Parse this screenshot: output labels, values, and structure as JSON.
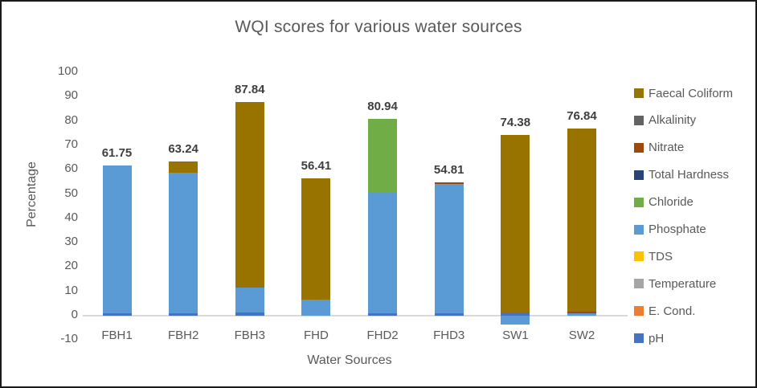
{
  "chart_data": {
    "type": "bar",
    "stacked": true,
    "title": "WQI scores for various water sources",
    "xlabel": "Water Sources",
    "ylabel": "Percentage",
    "ylim": [
      -10,
      100
    ],
    "ytick_step": 10,
    "grid": false,
    "legend_position": "right",
    "legend_order": "reverse-of-stack (Faecal Coliform on top, pH at bottom)",
    "categories": [
      "FBH1",
      "FBH2",
      "FBH3",
      "FHD",
      "FHD2",
      "FHD3",
      "SW1",
      "SW2"
    ],
    "totals": [
      61.75,
      63.24,
      87.84,
      56.41,
      80.94,
      54.81,
      74.38,
      76.84
    ],
    "total_labels": [
      "61.75",
      "63.24",
      "87.84",
      "56.41",
      "80.94",
      "54.81",
      "74.38",
      "76.84"
    ],
    "series": [
      {
        "name": "pH",
        "color": "#4472C4",
        "values": [
          1.0,
          1.0,
          1.2,
          0,
          1.0,
          1.0,
          1.0,
          0
        ]
      },
      {
        "name": "E. Cond.",
        "color": "#ED7D31",
        "values": [
          0,
          0,
          0,
          0,
          0,
          0,
          0,
          0
        ]
      },
      {
        "name": "Temperature",
        "color": "#A5A5A5",
        "values": [
          0,
          0,
          0,
          0,
          0,
          0,
          0,
          0
        ]
      },
      {
        "name": "TDS",
        "color": "#FFC000",
        "values": [
          0,
          0,
          0,
          0,
          0,
          0,
          0,
          0
        ]
      },
      {
        "name": "Phosphate",
        "color": "#5B9BD5",
        "values": [
          60.75,
          57.74,
          10.3,
          6.6,
          49.9,
          53.0,
          -3.5,
          1.0
        ]
      },
      {
        "name": "Chloride",
        "color": "#70AD47",
        "values": [
          0,
          0,
          0,
          0,
          30.04,
          0,
          0,
          0
        ]
      },
      {
        "name": "Total Hardness",
        "color": "#264478",
        "values": [
          0,
          0,
          0,
          0,
          0,
          0,
          0,
          0
        ]
      },
      {
        "name": "Nitrate",
        "color": "#9E480E",
        "values": [
          0,
          0,
          0,
          0,
          0,
          0.81,
          0,
          0.8
        ]
      },
      {
        "name": "Alkalinity",
        "color": "#636363",
        "values": [
          0,
          0,
          0,
          0,
          0,
          0,
          0,
          0
        ]
      },
      {
        "name": "Faecal Coliform",
        "color": "#997300",
        "values": [
          0,
          4.5,
          76.34,
          49.81,
          0,
          0,
          73.38,
          75.04
        ]
      }
    ]
  }
}
